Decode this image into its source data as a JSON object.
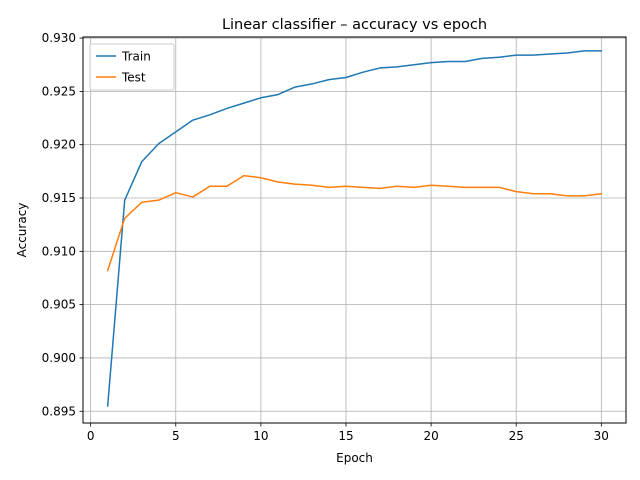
{
  "chart_data": {
    "type": "line",
    "title": "Linear classifier – accuracy vs epoch",
    "xlabel": "Epoch",
    "ylabel": "Accuracy",
    "xlim": [
      -0.45,
      31.45
    ],
    "ylim": [
      0.8939,
      0.9301
    ],
    "xticks": [
      0,
      5,
      10,
      15,
      20,
      25,
      30
    ],
    "xtick_labels": [
      "0",
      "5",
      "10",
      "15",
      "20",
      "25",
      "30"
    ],
    "yticks": [
      0.895,
      0.9,
      0.905,
      0.91,
      0.915,
      0.92,
      0.925,
      0.93
    ],
    "ytick_labels": [
      "0.895",
      "0.900",
      "0.905",
      "0.910",
      "0.915",
      "0.920",
      "0.925",
      "0.930"
    ],
    "grid": true,
    "legend_position": "top-left",
    "x": [
      1,
      2,
      3,
      4,
      5,
      6,
      7,
      8,
      9,
      10,
      11,
      12,
      13,
      14,
      15,
      16,
      17,
      18,
      19,
      20,
      21,
      22,
      23,
      24,
      25,
      26,
      27,
      28,
      29,
      30
    ],
    "series": [
      {
        "name": "Train",
        "color": "#1f77b4",
        "values": [
          0.8955,
          0.9148,
          0.9184,
          0.9201,
          0.9212,
          0.9223,
          0.9228,
          0.9234,
          0.9239,
          0.9244,
          0.9247,
          0.9254,
          0.9257,
          0.9261,
          0.9263,
          0.9268,
          0.9272,
          0.9273,
          0.9275,
          0.9277,
          0.9278,
          0.9278,
          0.9281,
          0.9282,
          0.9284,
          0.9284,
          0.9285,
          0.9286,
          0.9288,
          0.9288
        ]
      },
      {
        "name": "Test",
        "color": "#ff7f0e",
        "values": [
          0.9082,
          0.9131,
          0.9146,
          0.9148,
          0.9155,
          0.9151,
          0.9161,
          0.9161,
          0.9171,
          0.9169,
          0.9165,
          0.9163,
          0.9162,
          0.916,
          0.9161,
          0.916,
          0.9159,
          0.9161,
          0.916,
          0.9162,
          0.9161,
          0.916,
          0.916,
          0.916,
          0.9156,
          0.9154,
          0.9154,
          0.9152,
          0.9152,
          0.9154
        ]
      }
    ]
  }
}
